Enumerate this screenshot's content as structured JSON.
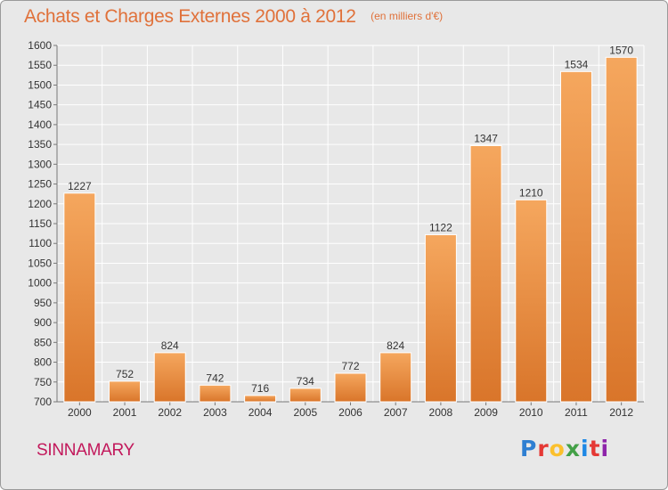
{
  "header": {
    "title": "Achats et Charges Externes 2000 à 2012",
    "unit": "(en milliers d'€)"
  },
  "footer": {
    "city": "SINNAMARY",
    "logo_text": "Proxiti"
  },
  "colors": {
    "title": "#e0713a",
    "bar_top": "#f5a75e",
    "bar_bottom": "#d9752a",
    "city": "#c2185b"
  },
  "chart_data": {
    "type": "bar",
    "title": "Achats et Charges Externes 2000 à 2012",
    "xlabel": "",
    "ylabel": "",
    "categories": [
      "2000",
      "2001",
      "2002",
      "2003",
      "2004",
      "2005",
      "2006",
      "2007",
      "2008",
      "2009",
      "2010",
      "2011",
      "2012"
    ],
    "values": [
      1227,
      752,
      824,
      742,
      716,
      734,
      772,
      824,
      1122,
      1347,
      1210,
      1534,
      1570
    ],
    "ylim": [
      700,
      1600
    ],
    "yticks": [
      700,
      750,
      800,
      850,
      900,
      950,
      1000,
      1050,
      1100,
      1150,
      1200,
      1250,
      1300,
      1350,
      1400,
      1450,
      1500,
      1550,
      1600
    ],
    "grid": true,
    "data_labels": true
  }
}
